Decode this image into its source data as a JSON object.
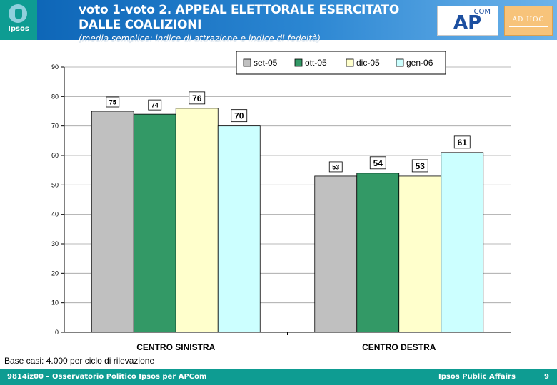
{
  "header": {
    "logo_text": "Ipsos",
    "title_line1": "voto 1-voto 2. APPEAL ELETTORALE ESERCITATO",
    "title_line2": "DALLE COALIZIONI",
    "subtitle": "(media semplice: indice di attrazione e indice di fedeltà)",
    "apcom_com": "COM",
    "apcom_ap": "AP",
    "adhoc_text": "AD HOC",
    "colors": {
      "banner": "#0a62b4",
      "accent": "#0e9c92"
    }
  },
  "chart_data": {
    "type": "bar",
    "categories": [
      "CENTRO SINISTRA",
      "CENTRO DESTRA"
    ],
    "series": [
      {
        "name": "set-05",
        "values": [
          75,
          53
        ],
        "color": "#c0c0c0"
      },
      {
        "name": "ott-05",
        "values": [
          74,
          54
        ],
        "color": "#339966"
      },
      {
        "name": "dic-05",
        "values": [
          76,
          53
        ],
        "color": "#ffffcc"
      },
      {
        "name": "gen-06",
        "values": [
          70,
          61
        ],
        "color": "#ccffff"
      }
    ],
    "ylim": [
      0,
      90
    ],
    "yticks": [
      0,
      10,
      20,
      30,
      40,
      50,
      60,
      70,
      80,
      90
    ],
    "grid": true,
    "legend": "top-right"
  },
  "base_note": "Base casi: 4.000 per ciclo di rilevazione",
  "footer": {
    "left": "9814iz00 – Osservatorio Politico Ipsos per APCom",
    "right": "Ipsos Public Affairs",
    "page": "9"
  }
}
